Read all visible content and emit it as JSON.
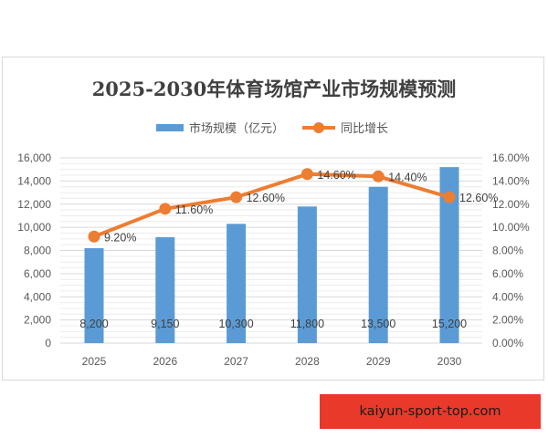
{
  "chart_data": {
    "type": "bar+line",
    "title": "2025-2030年体育场馆产业市场规模预测",
    "categories": [
      "2025",
      "2026",
      "2027",
      "2028",
      "2029",
      "2030"
    ],
    "series": [
      {
        "name": "市场规模（亿元）",
        "type": "bar",
        "axis": "left",
        "color": "#5b9bd5",
        "values": [
          8200,
          9150,
          10300,
          11800,
          13500,
          15200
        ],
        "labels": [
          "8,200",
          "9,150",
          "10,300",
          "11,800",
          "13,500",
          "15,200"
        ]
      },
      {
        "name": "同比增长",
        "type": "line",
        "axis": "right",
        "color": "#ed7d31",
        "values": [
          9.2,
          11.6,
          12.6,
          14.6,
          14.4,
          12.6
        ],
        "labels": [
          "9.20%",
          "11.60%",
          "12.60%",
          "14.60%",
          "14.40%",
          "12.60%"
        ]
      }
    ],
    "left_axis": {
      "ylim": [
        0,
        16000
      ],
      "ticks": [
        "0",
        "2,000",
        "4,000",
        "6,000",
        "8,000",
        "10,000",
        "12,000",
        "14,000",
        "16,000"
      ]
    },
    "right_axis": {
      "ylim": [
        0,
        16
      ],
      "ticks": [
        "0.00%",
        "2.00%",
        "4.00%",
        "6.00%",
        "8.00%",
        "10.00%",
        "12.00%",
        "14.00%",
        "16.00%"
      ]
    },
    "xlabel": "",
    "ylabel": "",
    "grid": true,
    "legend_position": "top"
  },
  "legend": {
    "bar_label": "市场规模（亿元）",
    "line_label": "同比增长"
  },
  "footer_banner": {
    "text": "kaiyun-sport-top.com",
    "color": "#e8392a"
  }
}
